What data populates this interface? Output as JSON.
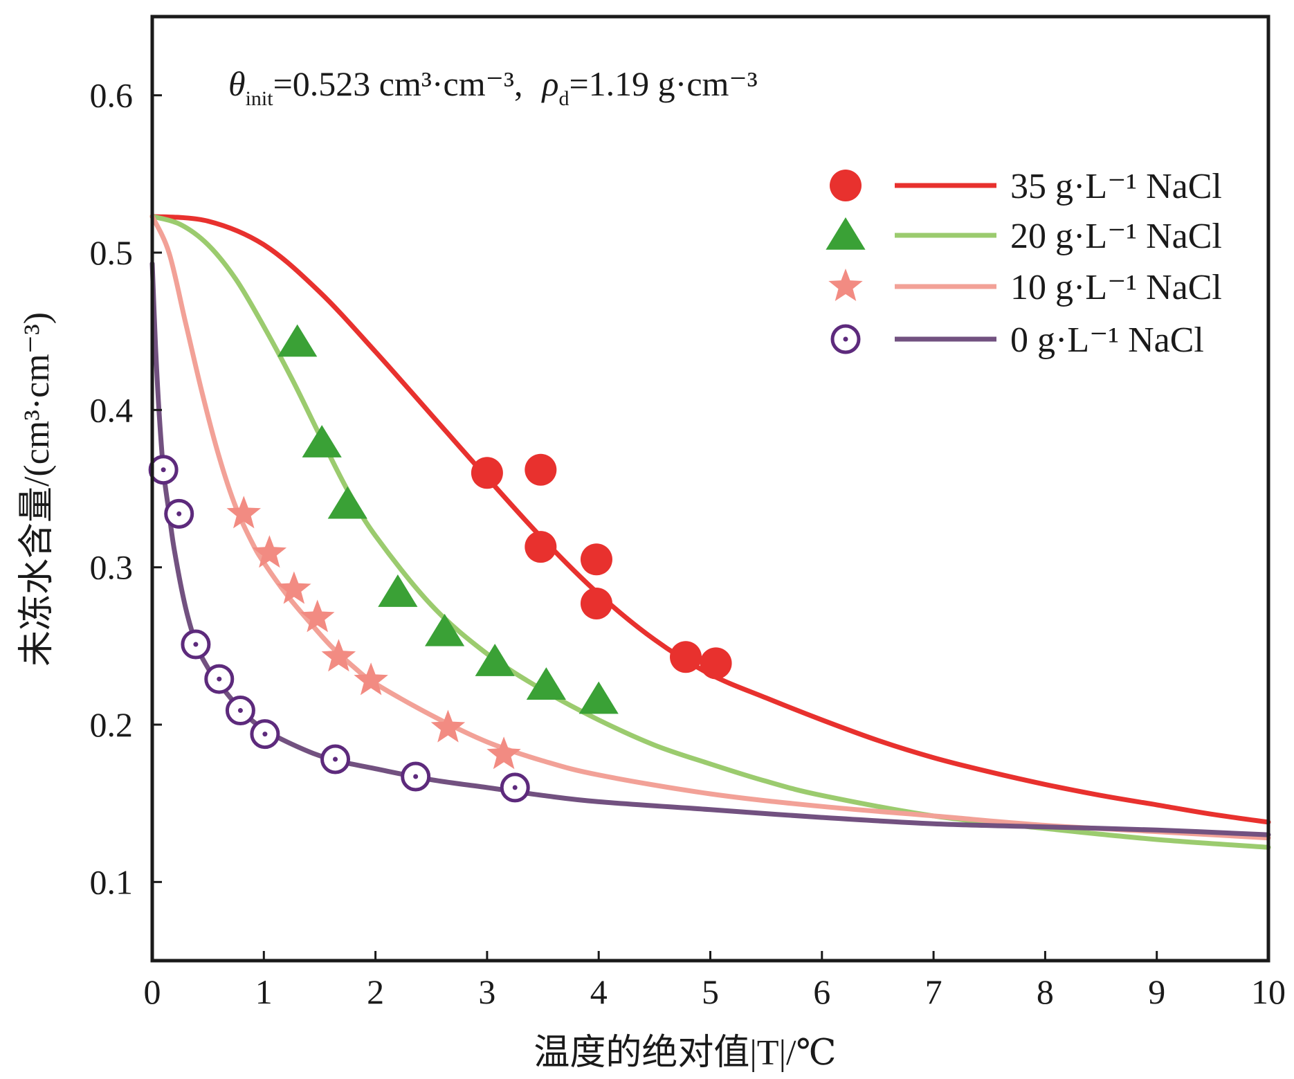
{
  "chart_data": {
    "type": "scatter",
    "title": "",
    "annotation": {
      "theta_symbol": "θ",
      "theta_sub": "init",
      "theta_text": "=0.523 cm³·cm⁻³,",
      "rho_symbol": "ρ",
      "rho_sub": "d",
      "rho_text": "=1.19 g·cm⁻³"
    },
    "xlabel": "温度的绝对值|T|/℃",
    "ylabel": "未冻水含量/(cm³·cm⁻³)",
    "xlim": [
      0,
      10
    ],
    "ylim": [
      0.05,
      0.65
    ],
    "x_ticks": [
      0,
      1,
      2,
      3,
      4,
      5,
      6,
      7,
      8,
      9,
      10
    ],
    "x_tick_labels": [
      "0",
      "1",
      "2",
      "3",
      "4",
      "5",
      "6",
      "7",
      "8",
      "9",
      "10"
    ],
    "y_ticks": [
      0.1,
      0.2,
      0.3,
      0.4,
      0.5,
      0.6
    ],
    "y_tick_labels": [
      "0.1",
      "0.2",
      "0.3",
      "0.4",
      "0.5",
      "0.6"
    ],
    "grid": false,
    "legend_position": "top-right",
    "series": [
      {
        "name": "35 g·L⁻¹ NaCl",
        "color": "#e8312e",
        "marker": "circle",
        "points": [
          [
            3.0,
            0.36
          ],
          [
            3.48,
            0.362
          ],
          [
            3.48,
            0.313
          ],
          [
            3.98,
            0.305
          ],
          [
            3.98,
            0.277
          ],
          [
            4.78,
            0.243
          ],
          [
            5.05,
            0.239
          ]
        ],
        "curve": [
          [
            0,
            0.523
          ],
          [
            0.5,
            0.52
          ],
          [
            1.0,
            0.505
          ],
          [
            1.5,
            0.475
          ],
          [
            2.0,
            0.437
          ],
          [
            2.5,
            0.397
          ],
          [
            3.0,
            0.357
          ],
          [
            3.5,
            0.318
          ],
          [
            4.0,
            0.283
          ],
          [
            4.5,
            0.254
          ],
          [
            5.0,
            0.232
          ],
          [
            5.5,
            0.217
          ],
          [
            6.0,
            0.203
          ],
          [
            6.5,
            0.19
          ],
          [
            7.0,
            0.179
          ],
          [
            7.5,
            0.17
          ],
          [
            8.0,
            0.162
          ],
          [
            8.5,
            0.155
          ],
          [
            9.0,
            0.149
          ],
          [
            9.5,
            0.143
          ],
          [
            10.0,
            0.138
          ]
        ]
      },
      {
        "name": "20 g·L⁻¹ NaCl",
        "color": "#9bcb6e",
        "marker_color": "#3aa136",
        "marker": "triangle",
        "points": [
          [
            1.3,
            0.443
          ],
          [
            1.52,
            0.379
          ],
          [
            1.75,
            0.34
          ],
          [
            2.2,
            0.284
          ],
          [
            2.62,
            0.259
          ],
          [
            3.07,
            0.24
          ],
          [
            3.53,
            0.225
          ],
          [
            4.0,
            0.216
          ]
        ],
        "curve": [
          [
            0,
            0.523
          ],
          [
            0.25,
            0.518
          ],
          [
            0.5,
            0.505
          ],
          [
            0.75,
            0.483
          ],
          [
            1.0,
            0.453
          ],
          [
            1.25,
            0.42
          ],
          [
            1.5,
            0.384
          ],
          [
            1.75,
            0.349
          ],
          [
            2.0,
            0.32
          ],
          [
            2.5,
            0.276
          ],
          [
            3.0,
            0.245
          ],
          [
            3.5,
            0.222
          ],
          [
            4.0,
            0.203
          ],
          [
            4.5,
            0.187
          ],
          [
            5.0,
            0.175
          ],
          [
            5.5,
            0.164
          ],
          [
            6.0,
            0.155
          ],
          [
            7.0,
            0.142
          ],
          [
            8.0,
            0.134
          ],
          [
            9.0,
            0.127
          ],
          [
            10.0,
            0.122
          ]
        ]
      },
      {
        "name": "10 g·L⁻¹ NaCl",
        "color": "#f2a197",
        "marker_color": "#f28b82",
        "marker": "star",
        "points": [
          [
            0.82,
            0.334
          ],
          [
            1.05,
            0.309
          ],
          [
            1.27,
            0.286
          ],
          [
            1.48,
            0.268
          ],
          [
            1.67,
            0.243
          ],
          [
            1.96,
            0.228
          ],
          [
            2.65,
            0.198
          ],
          [
            3.15,
            0.181
          ]
        ],
        "curve": [
          [
            0,
            0.523
          ],
          [
            0.15,
            0.5
          ],
          [
            0.3,
            0.455
          ],
          [
            0.45,
            0.41
          ],
          [
            0.6,
            0.37
          ],
          [
            0.75,
            0.338
          ],
          [
            0.9,
            0.315
          ],
          [
            1.0,
            0.303
          ],
          [
            1.2,
            0.283
          ],
          [
            1.4,
            0.266
          ],
          [
            1.6,
            0.25
          ],
          [
            1.8,
            0.237
          ],
          [
            2.0,
            0.226
          ],
          [
            2.5,
            0.206
          ],
          [
            3.0,
            0.189
          ],
          [
            3.5,
            0.177
          ],
          [
            4.0,
            0.168
          ],
          [
            5.0,
            0.156
          ],
          [
            6.0,
            0.148
          ],
          [
            7.0,
            0.142
          ],
          [
            8.0,
            0.136
          ],
          [
            9.0,
            0.132
          ],
          [
            10.0,
            0.128
          ]
        ]
      },
      {
        "name": "0 g·L⁻¹ NaCl",
        "color": "#725180",
        "marker_color": "#5d2a7c",
        "marker": "circle-dot",
        "points": [
          [
            0.1,
            0.362
          ],
          [
            0.24,
            0.334
          ],
          [
            0.39,
            0.251
          ],
          [
            0.6,
            0.229
          ],
          [
            0.79,
            0.209
          ],
          [
            1.01,
            0.194
          ],
          [
            1.64,
            0.178
          ],
          [
            2.36,
            0.167
          ],
          [
            3.25,
            0.16
          ]
        ],
        "curve": [
          [
            0,
            0.493
          ],
          [
            0.03,
            0.44
          ],
          [
            0.06,
            0.4
          ],
          [
            0.1,
            0.362
          ],
          [
            0.15,
            0.335
          ],
          [
            0.2,
            0.31
          ],
          [
            0.3,
            0.274
          ],
          [
            0.4,
            0.25
          ],
          [
            0.5,
            0.236
          ],
          [
            0.6,
            0.226
          ],
          [
            0.8,
            0.209
          ],
          [
            1.0,
            0.197
          ],
          [
            1.3,
            0.186
          ],
          [
            1.6,
            0.178
          ],
          [
            2.0,
            0.172
          ],
          [
            2.5,
            0.165
          ],
          [
            3.0,
            0.16
          ],
          [
            3.5,
            0.155
          ],
          [
            4.0,
            0.151
          ],
          [
            5.0,
            0.146
          ],
          [
            6.0,
            0.141
          ],
          [
            7.0,
            0.137
          ],
          [
            8.0,
            0.135
          ],
          [
            9.0,
            0.133
          ],
          [
            10.0,
            0.13
          ]
        ]
      }
    ]
  }
}
